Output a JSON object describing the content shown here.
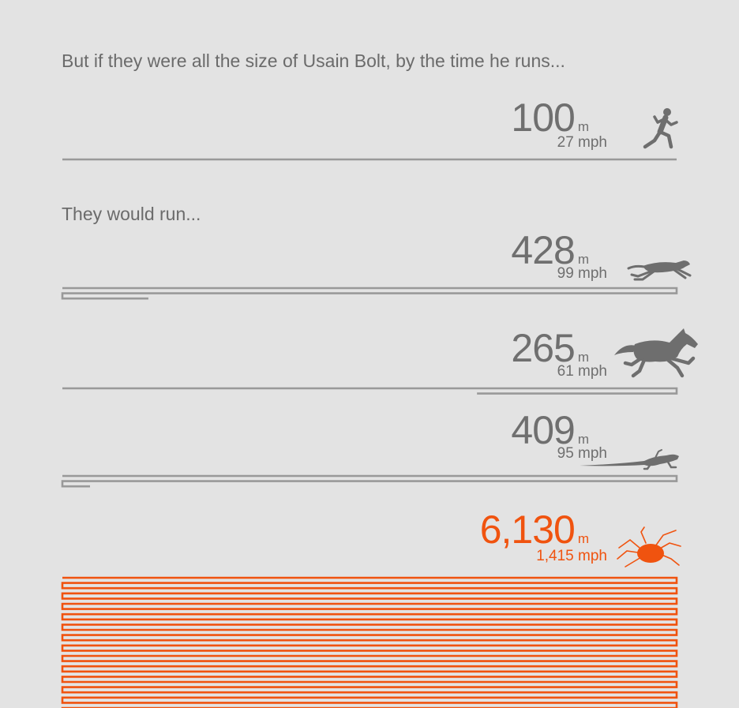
{
  "intro": "But if they were all the size of Usain Bolt, by the time he runs...",
  "intro2": "They would run...",
  "unit": "m",
  "colors": {
    "gray": "#999999",
    "text": "#6f6f6f",
    "highlight": "#f0530f",
    "background": "#e3e3e3"
  },
  "chart_data": {
    "type": "bar",
    "lap_length_m": 200,
    "rows": [
      {
        "animal_icon": "sprinter-icon",
        "distance_label": "100",
        "distance_m": 100,
        "speed": "27 mph",
        "highlight": false
      },
      {
        "animal_icon": "cheetah-icon",
        "distance_label": "428",
        "distance_m": 428,
        "speed": "99 mph",
        "highlight": false
      },
      {
        "animal_icon": "horse-icon",
        "distance_label": "265",
        "distance_m": 265,
        "speed": "61 mph",
        "highlight": false
      },
      {
        "animal_icon": "lizard-icon",
        "distance_label": "409",
        "distance_m": 409,
        "speed": "95 mph",
        "highlight": false
      },
      {
        "animal_icon": "mite-icon",
        "distance_label": "6,130",
        "distance_m": 6130,
        "speed": "1,415 mph",
        "highlight": true
      }
    ]
  }
}
